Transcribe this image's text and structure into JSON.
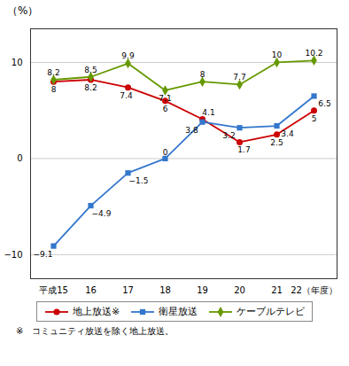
{
  "chart_data": {
    "type": "line",
    "title": "（%）",
    "categories": [
      "平成15",
      "16",
      "17",
      "18",
      "19",
      "20",
      "21",
      "22（年度）"
    ],
    "series": [
      {
        "name": "地上放送※",
        "color": "#cc0000",
        "marker": "circle",
        "values": [
          8.0,
          8.2,
          7.4,
          6.0,
          4.1,
          1.7,
          2.5,
          5.0
        ]
      },
      {
        "name": "衛星放送",
        "color": "#3377cc",
        "marker": "square",
        "values": [
          -9.1,
          -4.9,
          -1.5,
          0.0,
          3.8,
          3.2,
          3.4,
          6.5
        ],
        "value_labels": [
          "−9.1",
          "−4.9",
          "−1.5",
          "0",
          "3.8",
          "3.2",
          "3.4",
          "6.5"
        ]
      },
      {
        "name": "ケーブルテレビ",
        "color": "#669900",
        "marker": "diamond",
        "values": [
          8.2,
          8.5,
          9.9,
          7.1,
          8.0,
          7.7,
          10.0,
          10.2
        ]
      }
    ],
    "ylim": [
      -12.5,
      13.5
    ],
    "yticks": [
      -10,
      0,
      10
    ],
    "grid": true,
    "data_labels": true,
    "legend": "bottom",
    "footnote": "※　コミュニティ放送を除く地上放送。"
  }
}
